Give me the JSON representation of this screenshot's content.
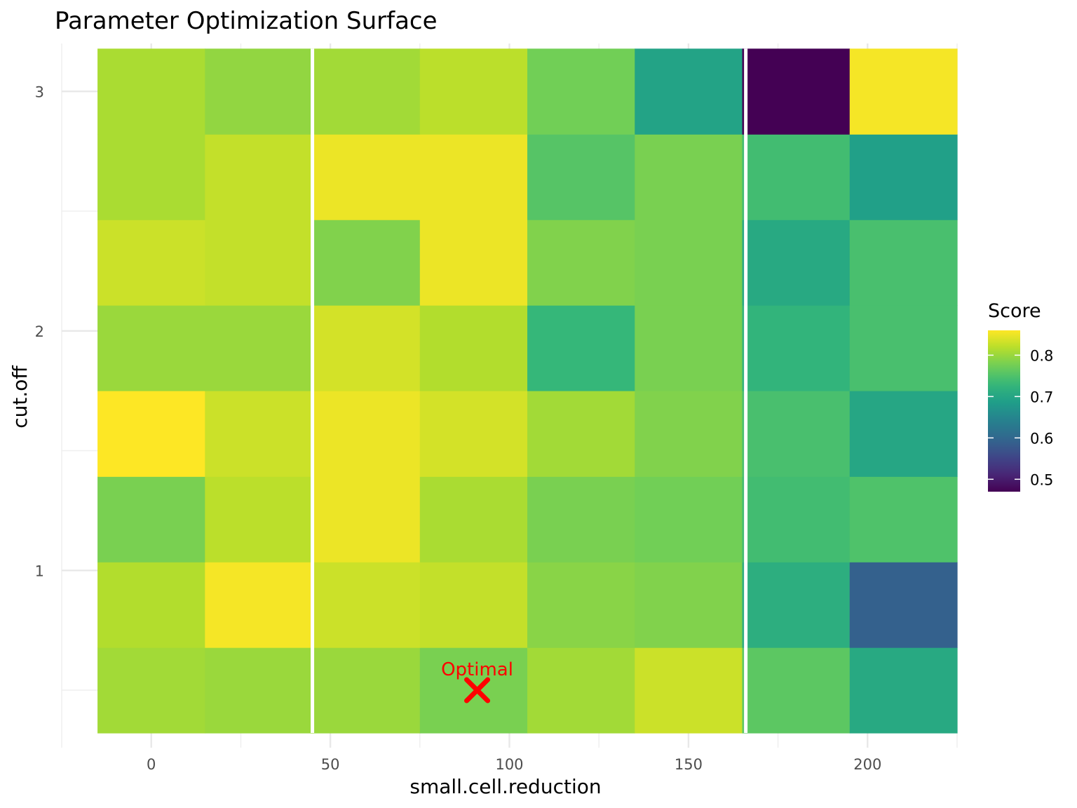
{
  "chart_data": {
    "type": "heatmap",
    "title": "Parameter Optimization Surface",
    "xlabel": "small.cell.reduction",
    "ylabel": "cut.off",
    "x_ticks": [
      0,
      50,
      100,
      150,
      200
    ],
    "y_ticks": [
      1,
      2,
      3
    ],
    "xlim": [
      -25,
      225
    ],
    "ylim": [
      0.26,
      3.2
    ],
    "x_bins": [
      0,
      30,
      60,
      90,
      120,
      150,
      180,
      210
    ],
    "y_bins": [
      0.5,
      0.857,
      1.214,
      1.571,
      1.929,
      2.286,
      2.643,
      3.0
    ],
    "vertical_separators_x": [
      45,
      166
    ],
    "grid": true,
    "legend": {
      "title": "Score",
      "position": "right",
      "ticks": [
        0.5,
        0.6,
        0.7,
        0.8
      ],
      "range": [
        0.47,
        0.86
      ]
    },
    "values": [
      [
        0.805,
        0.8,
        0.8,
        0.78,
        0.805,
        0.83,
        0.76,
        0.705
      ],
      [
        0.815,
        0.855,
        0.83,
        0.825,
        0.79,
        0.785,
        0.715,
        0.59
      ],
      [
        0.78,
        0.82,
        0.85,
        0.81,
        0.78,
        0.775,
        0.74,
        0.75
      ],
      [
        0.865,
        0.83,
        0.85,
        0.835,
        0.805,
        0.785,
        0.745,
        0.7
      ],
      [
        0.8,
        0.8,
        0.835,
        0.815,
        0.73,
        0.78,
        0.725,
        0.745
      ],
      [
        0.83,
        0.825,
        0.785,
        0.85,
        0.785,
        0.78,
        0.705,
        0.745
      ],
      [
        0.81,
        0.825,
        0.85,
        0.85,
        0.755,
        0.78,
        0.74,
        0.69
      ],
      [
        0.81,
        0.795,
        0.805,
        0.82,
        0.775,
        0.695,
        0.47,
        0.855
      ]
    ],
    "annotations": [
      {
        "label": "Optimal",
        "x": 91,
        "y": 0.5,
        "color": "#ff0000",
        "marker": "x"
      }
    ]
  }
}
